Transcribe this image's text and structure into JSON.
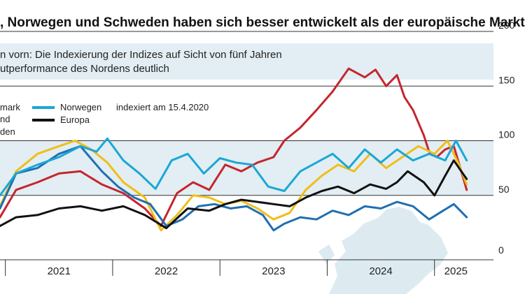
{
  "chart_data": {
    "type": "line",
    "title": ", Norwegen und Schweden haben sich besser entwickelt als der europäische Markt",
    "subtitle_lines": [
      "n vorn: Die Indexierung der Indizes auf Sicht von fünf Jahren",
      "utperformance des Nordens deutlich"
    ],
    "legend_note": "indexiert am 15.4.2020",
    "x_tick_labels": [
      "2021",
      "2022",
      "2023",
      "2024",
      "2025"
    ],
    "x_tick_values": [
      2021.5,
      2022.5,
      2023.5,
      2024.5,
      2025.2
    ],
    "x_year_boundaries": [
      2021.0,
      2022.0,
      2023.0,
      2024.0,
      2025.0
    ],
    "xlim": [
      2020.95,
      2025.55
    ],
    "y_ticks": [
      0,
      50,
      100,
      150,
      200
    ],
    "y_tick_labels": [
      "0",
      "50",
      "100",
      "150",
      "200"
    ],
    "ylim": [
      0,
      200
    ],
    "shaded_band": [
      50,
      100
    ],
    "grid": true,
    "legend_position": "top-left",
    "legend": [
      {
        "label": "mark",
        "color": "#c4262e"
      },
      {
        "label": "nd",
        "color": "#f0be1b"
      },
      {
        "label": "den",
        "color": "#1f6fb2"
      },
      {
        "label": "Norwegen",
        "color": "#1aa7d6"
      },
      {
        "label": "Europa",
        "color": "#111111"
      }
    ],
    "series": [
      {
        "key": "red",
        "color": "#c4262e",
        "x": [
          2020.95,
          2021.1,
          2021.3,
          2021.5,
          2021.7,
          2021.9,
          2022.1,
          2022.3,
          2022.45,
          2022.6,
          2022.75,
          2022.9,
          2023.05,
          2023.2,
          2023.35,
          2023.5,
          2023.6,
          2023.75,
          2023.9,
          2024.05,
          2024.2,
          2024.35,
          2024.45,
          2024.55,
          2024.65,
          2024.72,
          2024.8,
          2024.9,
          2024.95,
          2025.02,
          2025.1,
          2025.18,
          2025.25,
          2025.3
        ],
        "y": [
          30,
          55,
          62,
          70,
          72,
          60,
          52,
          38,
          22,
          52,
          62,
          55,
          78,
          72,
          80,
          85,
          100,
          112,
          128,
          145,
          166,
          158,
          165,
          150,
          160,
          140,
          128,
          105,
          90,
          85,
          92,
          95,
          72,
          55
        ]
      },
      {
        "key": "yellow",
        "color": "#f0be1b",
        "x": [
          2020.95,
          2021.1,
          2021.3,
          2021.5,
          2021.65,
          2021.8,
          2021.95,
          2022.1,
          2022.3,
          2022.45,
          2022.6,
          2022.75,
          2022.9,
          2023.05,
          2023.2,
          2023.35,
          2023.5,
          2023.65,
          2023.8,
          2023.95,
          2024.1,
          2024.25,
          2024.4,
          2024.55,
          2024.7,
          2024.85,
          2025.0,
          2025.12,
          2025.22,
          2025.3
        ],
        "y": [
          40,
          72,
          88,
          95,
          100,
          92,
          80,
          62,
          48,
          18,
          32,
          50,
          48,
          42,
          45,
          38,
          28,
          34,
          55,
          68,
          78,
          72,
          88,
          75,
          85,
          95,
          88,
          100,
          80,
          60
        ]
      },
      {
        "key": "blue",
        "color": "#1f6fb2",
        "x": [
          2020.95,
          2021.1,
          2021.3,
          2021.5,
          2021.7,
          2021.9,
          2022.05,
          2022.2,
          2022.35,
          2022.5,
          2022.65,
          2022.8,
          2022.95,
          2023.1,
          2023.25,
          2023.4,
          2023.5,
          2023.6,
          2023.75,
          2023.9,
          2024.05,
          2024.2,
          2024.35,
          2024.5,
          2024.65,
          2024.8,
          2024.95,
          2025.08,
          2025.18,
          2025.3
        ],
        "y": [
          38,
          70,
          75,
          88,
          95,
          72,
          58,
          48,
          42,
          22,
          28,
          40,
          42,
          38,
          40,
          32,
          18,
          24,
          30,
          28,
          36,
          32,
          40,
          38,
          44,
          40,
          28,
          36,
          42,
          30
        ]
      },
      {
        "key": "norway",
        "color": "#1aa7d6",
        "x": [
          2020.95,
          2021.1,
          2021.3,
          2021.5,
          2021.7,
          2021.85,
          2021.95,
          2022.1,
          2022.25,
          2022.4,
          2022.55,
          2022.7,
          2022.85,
          2023.0,
          2023.15,
          2023.3,
          2023.45,
          2023.6,
          2023.75,
          2023.9,
          2024.05,
          2024.2,
          2024.35,
          2024.5,
          2024.65,
          2024.8,
          2024.95,
          2025.1,
          2025.2,
          2025.3
        ],
        "y": [
          50,
          70,
          78,
          85,
          95,
          90,
          102,
          82,
          70,
          56,
          82,
          88,
          70,
          84,
          80,
          78,
          58,
          54,
          72,
          80,
          88,
          75,
          92,
          80,
          92,
          82,
          88,
          82,
          100,
          82
        ]
      },
      {
        "key": "europa",
        "color": "#111111",
        "x": [
          2020.95,
          2021.1,
          2021.3,
          2021.5,
          2021.7,
          2021.9,
          2022.1,
          2022.3,
          2022.5,
          2022.7,
          2022.9,
          2023.05,
          2023.2,
          2023.35,
          2023.5,
          2023.65,
          2023.8,
          2023.95,
          2024.1,
          2024.25,
          2024.4,
          2024.55,
          2024.65,
          2024.75,
          2024.9,
          2025.0,
          2025.1,
          2025.18,
          2025.25,
          2025.3
        ],
        "y": [
          22,
          30,
          32,
          38,
          40,
          36,
          40,
          32,
          20,
          38,
          36,
          42,
          46,
          44,
          42,
          40,
          48,
          54,
          58,
          52,
          60,
          56,
          62,
          72,
          62,
          50,
          68,
          82,
          72,
          65
        ]
      }
    ]
  }
}
